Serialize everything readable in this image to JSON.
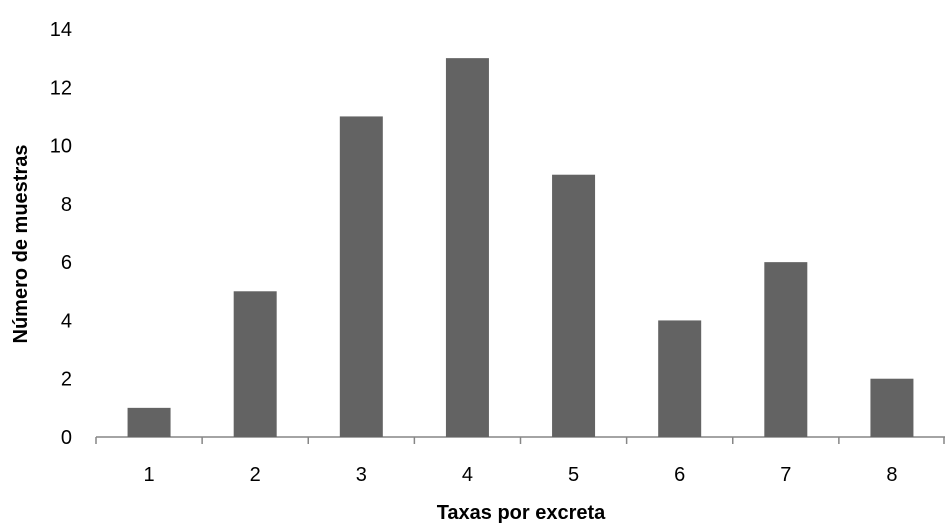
{
  "chart_data": {
    "type": "bar",
    "categories": [
      "1",
      "2",
      "3",
      "4",
      "5",
      "6",
      "7",
      "8"
    ],
    "values": [
      1,
      5,
      11,
      13,
      9,
      4,
      6,
      2
    ],
    "title": "",
    "xlabel": "Taxas por excreta",
    "ylabel": "Número de muestras",
    "ylim": [
      0,
      14
    ],
    "yticks": [
      "0",
      "2",
      "4",
      "6",
      "8",
      "10",
      "12",
      "14"
    ],
    "grid": false,
    "legend": "none",
    "bar_color": "#636363",
    "axis_color": "#868686"
  }
}
